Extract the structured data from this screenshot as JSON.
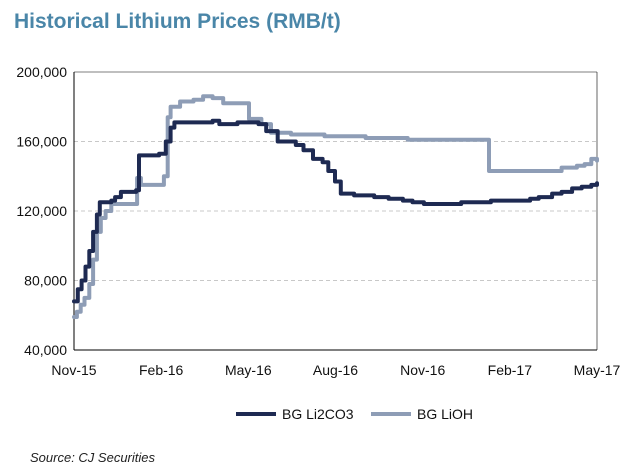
{
  "title": "Historical Lithium Prices (RMB/t)",
  "source": "Source: CJ Securities",
  "colors": {
    "title": "#4a86a8",
    "li2co3": "#1e2a52",
    "lioh": "#8e9db6",
    "grid": "#c8c8c8"
  },
  "chart_data": {
    "type": "line",
    "title": "Historical Lithium Prices (RMB/t)",
    "xlabel": "",
    "ylabel": "",
    "x_ticks": [
      "Nov-15",
      "Feb-16",
      "May-16",
      "Aug-16",
      "Nov-16",
      "Feb-17",
      "May-17"
    ],
    "x_range": [
      "2015-11-01",
      "2017-05-01"
    ],
    "y_ticks": [
      "40,000",
      "80,000",
      "120,000",
      "160,000",
      "200,000"
    ],
    "ylim": [
      40000,
      200000
    ],
    "grid": "horizontal dashed",
    "legend": "bottom",
    "series": [
      {
        "name": "BG Li2CO3",
        "color": "#1e2a52",
        "points": [
          [
            "2015-11-01",
            68000
          ],
          [
            "2015-11-05",
            75000
          ],
          [
            "2015-11-09",
            80000
          ],
          [
            "2015-11-13",
            88000
          ],
          [
            "2015-11-17",
            97000
          ],
          [
            "2015-11-21",
            108000
          ],
          [
            "2015-11-25",
            118000
          ],
          [
            "2015-11-28",
            125000
          ],
          [
            "2015-12-10",
            126000
          ],
          [
            "2015-12-14",
            128000
          ],
          [
            "2015-12-20",
            131000
          ],
          [
            "2016-01-05",
            132000
          ],
          [
            "2016-01-08",
            152000
          ],
          [
            "2016-01-29",
            153000
          ],
          [
            "2016-02-05",
            160000
          ],
          [
            "2016-02-10",
            168000
          ],
          [
            "2016-02-14",
            171000
          ],
          [
            "2016-03-25",
            172000
          ],
          [
            "2016-04-01",
            170000
          ],
          [
            "2016-04-20",
            171000
          ],
          [
            "2016-05-12",
            170000
          ],
          [
            "2016-05-20",
            166000
          ],
          [
            "2016-06-01",
            160000
          ],
          [
            "2016-06-20",
            158000
          ],
          [
            "2016-06-28",
            155000
          ],
          [
            "2016-07-08",
            150000
          ],
          [
            "2016-07-18",
            148000
          ],
          [
            "2016-07-24",
            143000
          ],
          [
            "2016-07-31",
            137000
          ],
          [
            "2016-08-06",
            130000
          ],
          [
            "2016-08-20",
            129000
          ],
          [
            "2016-09-10",
            128000
          ],
          [
            "2016-09-25",
            127000
          ],
          [
            "2016-10-10",
            126000
          ],
          [
            "2016-10-20",
            125000
          ],
          [
            "2016-11-01",
            124000
          ],
          [
            "2016-12-10",
            125000
          ],
          [
            "2016-12-31",
            125000
          ],
          [
            "2017-01-10",
            126000
          ],
          [
            "2017-02-05",
            126000
          ],
          [
            "2017-02-20",
            127000
          ],
          [
            "2017-03-01",
            128000
          ],
          [
            "2017-03-15",
            130000
          ],
          [
            "2017-03-25",
            131000
          ],
          [
            "2017-04-05",
            133000
          ],
          [
            "2017-04-15",
            134000
          ],
          [
            "2017-04-25",
            135000
          ],
          [
            "2017-05-01",
            136000
          ]
        ]
      },
      {
        "name": "BG LiOH",
        "color": "#8e9db6",
        "points": [
          [
            "2015-11-01",
            59000
          ],
          [
            "2015-11-04",
            62000
          ],
          [
            "2015-11-08",
            66000
          ],
          [
            "2015-11-12",
            70000
          ],
          [
            "2015-11-17",
            78000
          ],
          [
            "2015-11-21",
            92000
          ],
          [
            "2015-11-25",
            108000
          ],
          [
            "2015-11-29",
            116000
          ],
          [
            "2015-12-04",
            120000
          ],
          [
            "2015-12-10",
            124000
          ],
          [
            "2016-01-02",
            124000
          ],
          [
            "2016-01-06",
            139000
          ],
          [
            "2016-01-10",
            135000
          ],
          [
            "2016-01-29",
            135000
          ],
          [
            "2016-02-03",
            140000
          ],
          [
            "2016-02-07",
            174000
          ],
          [
            "2016-02-10",
            180000
          ],
          [
            "2016-02-20",
            183000
          ],
          [
            "2016-03-05",
            184000
          ],
          [
            "2016-03-15",
            186000
          ],
          [
            "2016-03-25",
            185000
          ],
          [
            "2016-04-05",
            182000
          ],
          [
            "2016-04-28",
            182000
          ],
          [
            "2016-05-02",
            173000
          ],
          [
            "2016-05-15",
            170000
          ],
          [
            "2016-05-25",
            165000
          ],
          [
            "2016-06-15",
            164000
          ],
          [
            "2016-07-10",
            164000
          ],
          [
            "2016-07-20",
            163000
          ],
          [
            "2016-08-10",
            163000
          ],
          [
            "2016-09-01",
            162000
          ],
          [
            "2016-10-15",
            161000
          ],
          [
            "2016-12-10",
            161000
          ],
          [
            "2016-12-31",
            161000
          ],
          [
            "2017-01-08",
            143000
          ],
          [
            "2017-03-20",
            143000
          ],
          [
            "2017-03-25",
            145000
          ],
          [
            "2017-04-10",
            146000
          ],
          [
            "2017-04-18",
            147000
          ],
          [
            "2017-04-25",
            150000
          ],
          [
            "2017-05-01",
            149000
          ]
        ]
      }
    ]
  }
}
